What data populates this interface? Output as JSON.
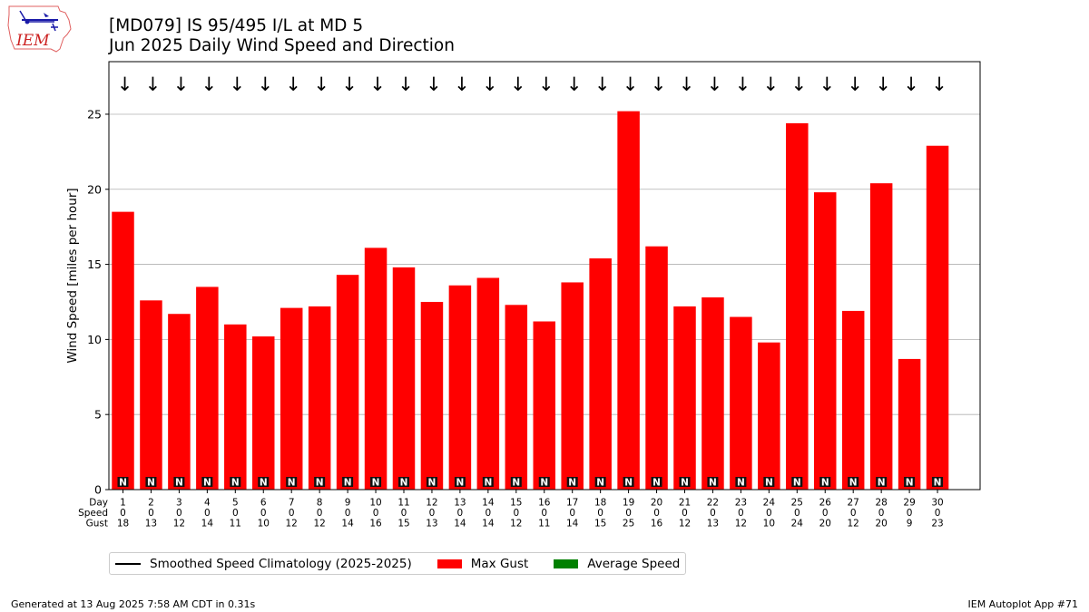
{
  "header": {
    "title": "[MD079] IS 95/495 I/L at MD 5",
    "subtitle": "Jun 2025 Daily Wind Speed and Direction",
    "logo_text": "IEM"
  },
  "chart_data": {
    "type": "bar",
    "title": "[MD079] IS 95/495 I/L at MD 5",
    "subtitle": "Jun 2025 Daily Wind Speed and Direction",
    "ylabel": "Wind Speed [miles per hour]",
    "ylim": [
      0,
      28.5
    ],
    "yticks": [
      0,
      5,
      10,
      15,
      20,
      25
    ],
    "grid": true,
    "row_labels": [
      "Day",
      "Speed",
      "Gust"
    ],
    "categories": [
      "1",
      "2",
      "3",
      "4",
      "5",
      "6",
      "7",
      "8",
      "9",
      "10",
      "11",
      "12",
      "13",
      "14",
      "15",
      "16",
      "17",
      "18",
      "19",
      "20",
      "21",
      "22",
      "23",
      "24",
      "25",
      "26",
      "27",
      "28",
      "29",
      "30"
    ],
    "speed_row": [
      0,
      0,
      0,
      0,
      0,
      0,
      0,
      0,
      0,
      0,
      0,
      0,
      0,
      0,
      0,
      0,
      0,
      0,
      0,
      0,
      0,
      0,
      0,
      0,
      0,
      0,
      0,
      0,
      0,
      0
    ],
    "gust_row": [
      18,
      13,
      12,
      14,
      11,
      10,
      12,
      12,
      14,
      16,
      15,
      13,
      14,
      14,
      12,
      11,
      14,
      15,
      25,
      16,
      12,
      13,
      12,
      10,
      24,
      20,
      12,
      20,
      9,
      23
    ],
    "series": [
      {
        "name": "Max Gust",
        "color": "#ff0000",
        "values": [
          18.5,
          12.6,
          11.7,
          13.5,
          11.0,
          10.2,
          12.1,
          12.2,
          14.3,
          16.1,
          14.8,
          12.5,
          13.6,
          14.1,
          12.3,
          11.2,
          13.8,
          15.4,
          25.2,
          16.2,
          12.2,
          12.8,
          11.5,
          9.8,
          24.4,
          19.8,
          11.9,
          20.4,
          8.7,
          22.9
        ]
      },
      {
        "name": "Average Speed",
        "color": "#008000",
        "values": [
          0,
          0,
          0,
          0,
          0,
          0,
          0,
          0,
          0,
          0,
          0,
          0,
          0,
          0,
          0,
          0,
          0,
          0,
          0,
          0,
          0,
          0,
          0,
          0,
          0,
          0,
          0,
          0,
          0,
          0
        ]
      }
    ],
    "direction_label": "N",
    "arrow_glyph": "↓",
    "legend_placement": "bottom-left"
  },
  "legend": {
    "climatology": "Smoothed Speed Climatology (2025-2025)",
    "max_gust": "Max Gust",
    "average_speed": "Average Speed",
    "climatology_color": "#000000",
    "max_gust_color": "#ff0000",
    "average_speed_color": "#008000"
  },
  "footer": {
    "generated": "Generated at 13 Aug 2025 7:58 AM CDT in 0.31s",
    "app": "IEM Autoplot App #71"
  }
}
